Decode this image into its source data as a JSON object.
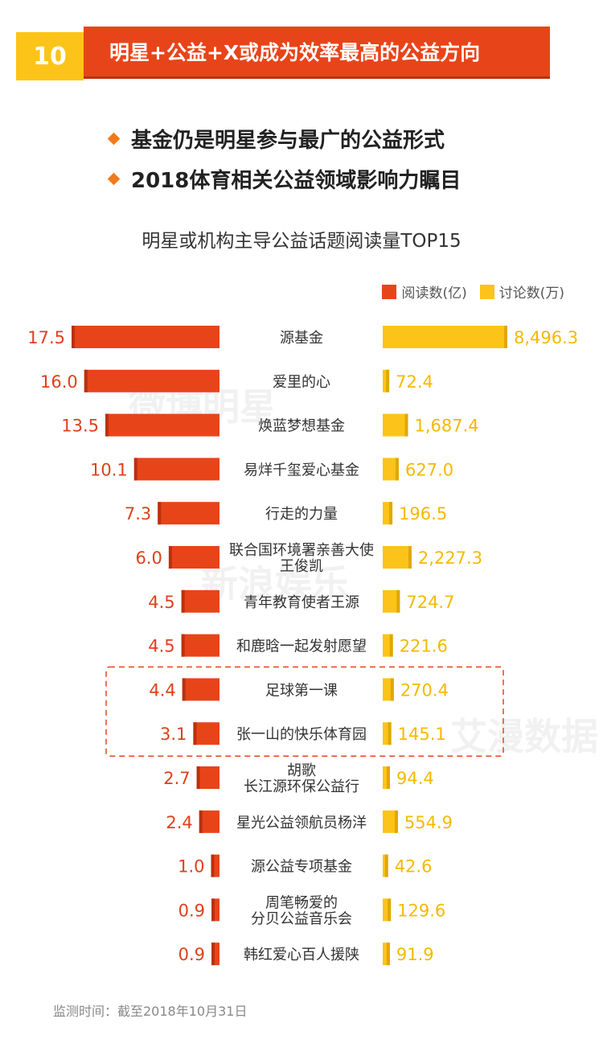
{
  "header": {
    "number": "10",
    "title": "明星+公益+X或成为效率最高的公益方向"
  },
  "bullets": [
    "基金仍是明星参与最广的公益形式",
    "2018体育相关公益领域影响力瞩目"
  ],
  "watermarks": [
    "微博明星",
    "新浪娱乐",
    "艾漫数据"
  ],
  "footer": "监测时间：截至2018年10月31日",
  "colors": {
    "red": "#e8441a",
    "yellow": "#fcc419",
    "red_text": "#e0401a",
    "yellow_text": "#f5b900"
  },
  "chart_data": {
    "type": "bar",
    "title": "明星或机构主导公益话题阅读量TOP15",
    "legend": [
      "阅读数(亿)",
      "讨论数(万)"
    ],
    "legend_position": "top-right",
    "categories": [
      "源基金",
      "爱里的心",
      "焕蓝梦想基金",
      "易烊千玺爱心基金",
      "行走的力量",
      "联合国环境署亲善大使\n王俊凯",
      "青年教育使者王源",
      "和鹿晗一起发射愿望",
      "足球第一课",
      "张一山的快乐体育园",
      "胡歌\n长江源环保公益行",
      "星光公益领航员杨洋",
      "源公益专项基金",
      "周笔畅爱的\n分贝公益音乐会",
      "韩红爱心百人援陕"
    ],
    "series": [
      {
        "name": "阅读数(亿)",
        "values": [
          17.5,
          16.0,
          13.5,
          10.1,
          7.3,
          6.0,
          4.5,
          4.5,
          4.4,
          3.1,
          2.7,
          2.4,
          1.0,
          0.9,
          0.9
        ],
        "labels": [
          "17.5",
          "16.0",
          "13.5",
          "10.1",
          "7.3",
          "6.0",
          "4.5",
          "4.5",
          "4.4",
          "3.1",
          "2.7",
          "2.4",
          "1.0",
          "0.9",
          "0.9"
        ]
      },
      {
        "name": "讨论数(万)",
        "values": [
          8496.3,
          72.4,
          1687.4,
          627.0,
          196.5,
          2227.3,
          724.7,
          221.6,
          270.4,
          145.1,
          94.4,
          554.9,
          42.6,
          129.6,
          91.9
        ],
        "labels": [
          "8,496.3",
          "72.4",
          "1,687.4",
          "627.0",
          "196.5",
          "2,227.3",
          "724.7",
          "221.6",
          "270.4",
          "145.1",
          "94.4",
          "554.9",
          "42.6",
          "129.6",
          "91.9"
        ]
      }
    ],
    "highlight_rows": [
      "足球第一课",
      "张一山的快乐体育园"
    ]
  }
}
